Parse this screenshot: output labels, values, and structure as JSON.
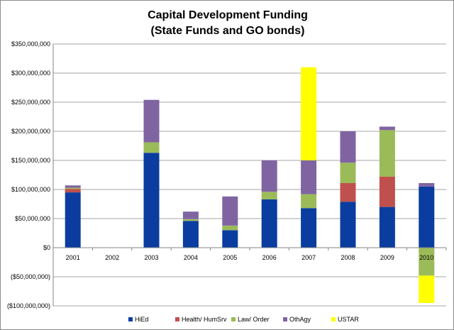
{
  "chart_data": {
    "type": "bar",
    "stacked": true,
    "title": "Capital Development Funding",
    "subtitle": "(State Funds and GO bonds)",
    "categories": [
      "2001",
      "2002",
      "2003",
      "2004",
      "2005",
      "2006",
      "2007",
      "2008",
      "2009",
      "2010"
    ],
    "series": [
      {
        "name": "HiEd",
        "color": "#0a3d9f",
        "values": [
          95000000,
          0,
          163000000,
          46000000,
          30000000,
          83000000,
          68000000,
          79000000,
          70000000,
          105000000
        ]
      },
      {
        "name": "Health/ HumSrv",
        "color": "#c0504d",
        "values": [
          6000000,
          0,
          0,
          0,
          0,
          0,
          0,
          32000000,
          52000000,
          0
        ]
      },
      {
        "name": "Law/ Order",
        "color": "#9bbb59",
        "values": [
          2000000,
          0,
          18000000,
          3000000,
          8000000,
          13000000,
          24000000,
          35000000,
          80000000,
          -48000000
        ]
      },
      {
        "name": "OthAgy",
        "color": "#8064a2",
        "values": [
          4000000,
          0,
          73000000,
          13000000,
          50000000,
          54000000,
          58000000,
          54000000,
          6000000,
          6000000
        ]
      },
      {
        "name": "USTAR",
        "color": "#ffff00",
        "values": [
          0,
          0,
          0,
          0,
          0,
          0,
          160000000,
          0,
          0,
          -47000000
        ]
      }
    ],
    "ylim": [
      -100000000,
      350000000
    ],
    "yticks": [
      350000000,
      300000000,
      250000000,
      200000000,
      150000000,
      100000000,
      50000000,
      0,
      -50000000,
      -100000000
    ],
    "ytick_labels": [
      "$350,000,000",
      "$300,000,000",
      "$250,000,000",
      "$200,000,000",
      "$150,000,000",
      "$100,000,000",
      "$50,000,000",
      "$0",
      "($50,000,000)",
      "($100,000,000)"
    ],
    "xlabel": "",
    "ylabel": "",
    "grid": "horizontal",
    "legend": "bottom"
  }
}
